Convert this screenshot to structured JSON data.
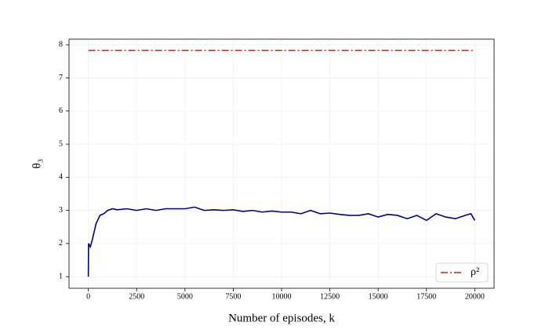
{
  "chart_data": {
    "type": "line",
    "xlabel": "Number of episodes, k",
    "ylabel": "θ₃",
    "xlim": [
      -1000,
      21000
    ],
    "xticks": [
      0,
      2500,
      5000,
      7500,
      10000,
      12500,
      15000,
      17500,
      20000
    ],
    "ylim": [
      0.65,
      8.17
    ],
    "yticks": [
      1,
      2,
      3,
      4,
      5,
      6,
      7,
      8
    ],
    "grid": true,
    "legend_loc": "lower right",
    "series": [
      {
        "name": "ρ²",
        "color": "#e41a1c",
        "style": "dashdot",
        "legend": true,
        "x": [
          0,
          20000
        ],
        "values": [
          7.83,
          7.83
        ]
      },
      {
        "color": "#00008b",
        "style": "solid",
        "x": [
          0,
          10,
          100,
          200,
          400,
          600,
          800,
          1000,
          1250,
          1500,
          2000,
          2500,
          3000,
          3500,
          4000,
          4500,
          5000,
          5500,
          6000,
          6500,
          7000,
          7500,
          8000,
          8500,
          9000,
          9500,
          10000,
          10500,
          11000,
          11500,
          12000,
          12500,
          13000,
          13500,
          14000,
          14500,
          15000,
          15500,
          16000,
          16500,
          17000,
          17500,
          18000,
          18500,
          19000,
          19500,
          19800,
          20000
        ],
        "values": [
          1.0,
          2.0,
          1.9,
          2.1,
          2.6,
          2.85,
          2.9,
          3.0,
          3.05,
          3.02,
          3.05,
          3.0,
          3.05,
          3.0,
          3.05,
          3.05,
          3.05,
          3.1,
          3.0,
          3.02,
          3.0,
          3.02,
          2.97,
          3.0,
          2.95,
          2.98,
          2.95,
          2.95,
          2.9,
          3.0,
          2.9,
          2.92,
          2.88,
          2.85,
          2.85,
          2.9,
          2.8,
          2.88,
          2.85,
          2.75,
          2.85,
          2.7,
          2.9,
          2.8,
          2.75,
          2.85,
          2.9,
          2.7
        ]
      }
    ]
  }
}
